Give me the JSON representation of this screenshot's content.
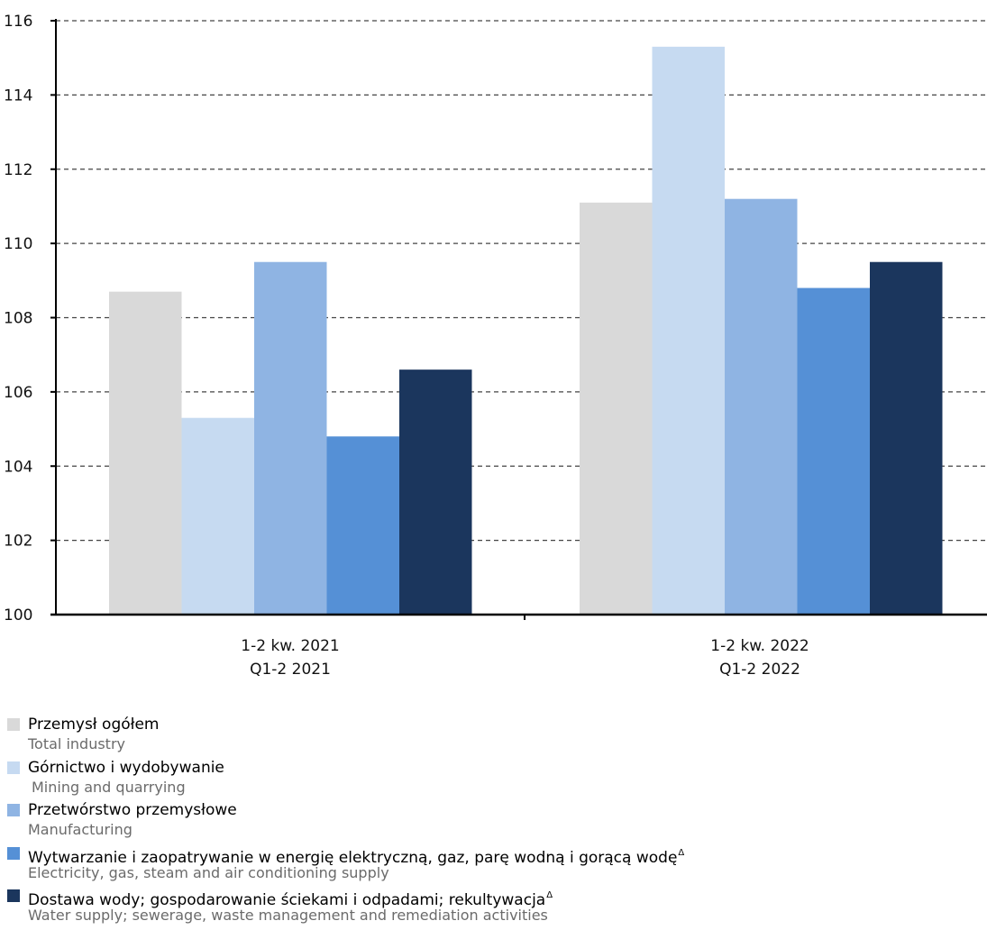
{
  "chart_data": {
    "type": "bar",
    "categories": [
      {
        "line1": "1-2 kw. 2021",
        "line2": "Q1-2 2021"
      },
      {
        "line1": "1-2 kw. 2022",
        "line2": "Q1-2 2022"
      }
    ],
    "ylim": [
      100,
      116
    ],
    "yticks": [
      100,
      102,
      104,
      106,
      108,
      110,
      112,
      114,
      116
    ],
    "grid": "dashed horizontal",
    "legend_position": "bottom",
    "series": [
      {
        "name": "Przemysł ogółem",
        "name_en": "Total industry",
        "color": "#d9d9d9",
        "values": [
          108.7,
          111.1
        ]
      },
      {
        "name": "Górnictwo i wydobywanie",
        "name_en": "Mining and quarrying",
        "color": "#c6daf1",
        "values": [
          105.3,
          115.3
        ]
      },
      {
        "name": "Przetwórstwo przemysłowe",
        "name_en": "Manufacturing",
        "color": "#8fb4e3",
        "values": [
          109.5,
          111.2
        ]
      },
      {
        "name": "Wytwarzanie i zaopatrywanie w energię elektryczną, gaz, parę wodną i gorącą wodę",
        "name_en": "Electricity, gas, steam and air conditioning supply",
        "color": "#5590d6",
        "values": [
          104.8,
          108.8
        ],
        "mark": "Δ"
      },
      {
        "name": "Dostawa wody; gospodarowanie ściekami i odpadami; rekultywacja",
        "name_en": "Water supply; sewerage, waste management and remediation activities",
        "color": "#1b365d",
        "values": [
          106.6,
          109.5
        ],
        "mark": "Δ"
      }
    ]
  }
}
